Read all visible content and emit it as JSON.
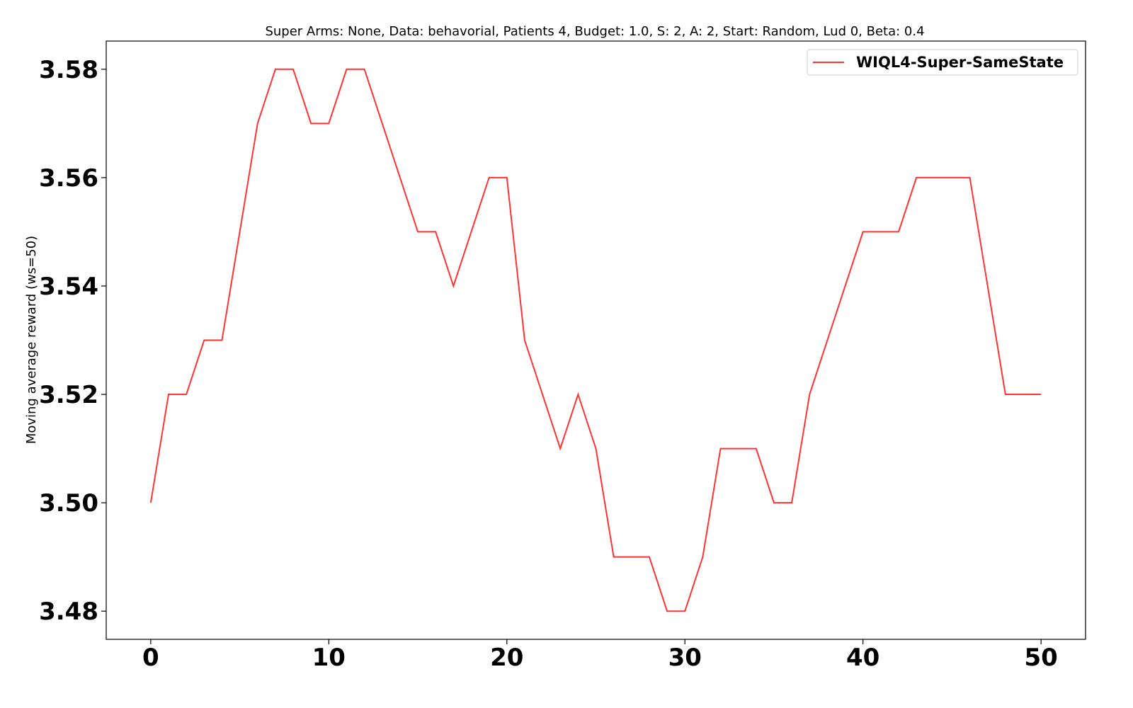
{
  "chart_data": {
    "type": "line",
    "title": "Super Arms: None, Data: behavorial, Patients 4, Budget: 1.0, S: 2, A: 2, Start: Random, Lud 0, Beta: 0.4",
    "xlabel": "",
    "ylabel": "Moving average reward (ws=50)",
    "xlim": [
      -2.5,
      52.5
    ],
    "ylim": [
      3.4748,
      3.5852
    ],
    "xticks": [
      0,
      10,
      20,
      30,
      40,
      50
    ],
    "xtick_labels": [
      "0",
      "10",
      "20",
      "30",
      "40",
      "50"
    ],
    "yticks": [
      3.48,
      3.5,
      3.52,
      3.54,
      3.56,
      3.58
    ],
    "ytick_labels": [
      "3.48",
      "3.50",
      "3.52",
      "3.54",
      "3.56",
      "3.58"
    ],
    "grid": false,
    "legend_position": "top-right",
    "x": [
      0,
      1,
      2,
      3,
      4,
      5,
      6,
      7,
      8,
      9,
      10,
      11,
      12,
      13,
      14,
      15,
      16,
      17,
      18,
      19,
      20,
      21,
      22,
      23,
      24,
      25,
      26,
      27,
      28,
      29,
      30,
      31,
      32,
      33,
      34,
      35,
      36,
      37,
      38,
      39,
      40,
      41,
      42,
      43,
      44,
      45,
      46,
      47,
      48,
      49,
      50
    ],
    "series": [
      {
        "name": "WIQL4-Super-SameState",
        "color": "#ff3333",
        "values": [
          3.5,
          3.52,
          3.52,
          3.53,
          3.53,
          3.55,
          3.57,
          3.58,
          3.58,
          3.57,
          3.57,
          3.58,
          3.58,
          3.57,
          3.56,
          3.55,
          3.55,
          3.54,
          3.55,
          3.56,
          3.56,
          3.53,
          3.52,
          3.51,
          3.52,
          3.51,
          3.49,
          3.49,
          3.49,
          3.48,
          3.48,
          3.49,
          3.51,
          3.51,
          3.51,
          3.5,
          3.5,
          3.52,
          3.53,
          3.54,
          3.55,
          3.55,
          3.55,
          3.56,
          3.56,
          3.56,
          3.56,
          3.54,
          3.52,
          3.52,
          3.52
        ]
      }
    ]
  }
}
